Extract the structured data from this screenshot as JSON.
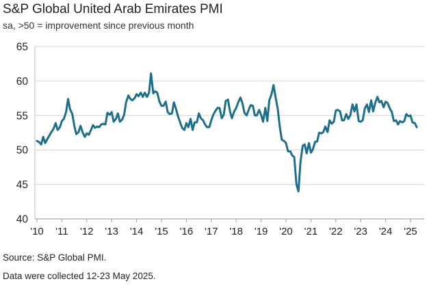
{
  "chart_data": {
    "type": "line",
    "title": "S&P Global United Arab Emirates PMI",
    "subtitle": "sa, >50 = improvement since previous month",
    "source": "Source: S&P Global PMI.",
    "note": "Data were collected 12-23 May 2025.",
    "ylim": [
      40,
      65
    ],
    "yticks": [
      "40",
      "45",
      "50",
      "55",
      "60",
      "65"
    ],
    "xlim": [
      2010,
      2025.42
    ],
    "xticks": [
      {
        "x": 2010,
        "label": "'10"
      },
      {
        "x": 2011,
        "label": "'11"
      },
      {
        "x": 2012,
        "label": "'12"
      },
      {
        "x": 2013,
        "label": "'13"
      },
      {
        "x": 2014,
        "label": "'14"
      },
      {
        "x": 2015,
        "label": "'15"
      },
      {
        "x": 2016,
        "label": "'16"
      },
      {
        "x": 2017,
        "label": "'17"
      },
      {
        "x": 2018,
        "label": "'18"
      },
      {
        "x": 2019,
        "label": "'19"
      },
      {
        "x": 2020,
        "label": "'20"
      },
      {
        "x": 2021,
        "label": "'21"
      },
      {
        "x": 2022,
        "label": "'22"
      },
      {
        "x": 2023,
        "label": "'23"
      },
      {
        "x": 2024,
        "label": "'24"
      },
      {
        "x": 2025,
        "label": "'25"
      }
    ],
    "grid": true,
    "line_color": "#1b6f8c",
    "series": [
      {
        "points": [
          [
            2010.0,
            51.3
          ],
          [
            2010.1,
            51.1
          ],
          [
            2010.17,
            50.8
          ],
          [
            2010.25,
            51.9
          ],
          [
            2010.33,
            51.0
          ],
          [
            2010.42,
            51.6
          ],
          [
            2010.5,
            52.1
          ],
          [
            2010.58,
            52.6
          ],
          [
            2010.67,
            53.1
          ],
          [
            2010.75,
            53.9
          ],
          [
            2010.83,
            52.9
          ],
          [
            2010.92,
            53.3
          ],
          [
            2011.0,
            54.2
          ],
          [
            2011.08,
            54.5
          ],
          [
            2011.17,
            55.5
          ],
          [
            2011.25,
            57.4
          ],
          [
            2011.33,
            55.9
          ],
          [
            2011.42,
            55.2
          ],
          [
            2011.5,
            53.5
          ],
          [
            2011.58,
            52.3
          ],
          [
            2011.67,
            52.6
          ],
          [
            2011.75,
            53.5
          ],
          [
            2011.83,
            52.6
          ],
          [
            2011.92,
            51.9
          ],
          [
            2012.0,
            52.4
          ],
          [
            2012.08,
            52.2
          ],
          [
            2012.17,
            52.9
          ],
          [
            2012.25,
            53.6
          ],
          [
            2012.33,
            53.2
          ],
          [
            2012.42,
            53.4
          ],
          [
            2012.5,
            53.3
          ],
          [
            2012.58,
            53.7
          ],
          [
            2012.67,
            53.8
          ],
          [
            2012.75,
            53.7
          ],
          [
            2012.83,
            55.4
          ],
          [
            2012.92,
            55.1
          ],
          [
            2013.0,
            55.5
          ],
          [
            2013.08,
            54.1
          ],
          [
            2013.17,
            54.5
          ],
          [
            2013.25,
            55.3
          ],
          [
            2013.33,
            54.1
          ],
          [
            2013.42,
            54.4
          ],
          [
            2013.5,
            55.1
          ],
          [
            2013.58,
            56.9
          ],
          [
            2013.67,
            57.9
          ],
          [
            2013.75,
            57.4
          ],
          [
            2013.83,
            57.2
          ],
          [
            2013.92,
            57.5
          ],
          [
            2014.0,
            58.1
          ],
          [
            2014.08,
            57.8
          ],
          [
            2014.17,
            58.3
          ],
          [
            2014.25,
            57.7
          ],
          [
            2014.33,
            58.3
          ],
          [
            2014.42,
            57.7
          ],
          [
            2014.5,
            58.3
          ],
          [
            2014.58,
            61.1
          ],
          [
            2014.67,
            58.2
          ],
          [
            2014.75,
            58.5
          ],
          [
            2014.83,
            58.3
          ],
          [
            2014.92,
            57.0
          ],
          [
            2015.0,
            56.4
          ],
          [
            2015.08,
            56.4
          ],
          [
            2015.17,
            57.0
          ],
          [
            2015.25,
            55.5
          ],
          [
            2015.33,
            55.2
          ],
          [
            2015.42,
            55.3
          ],
          [
            2015.5,
            56.9
          ],
          [
            2015.58,
            56.0
          ],
          [
            2015.67,
            54.8
          ],
          [
            2015.75,
            54.0
          ],
          [
            2015.83,
            53.2
          ],
          [
            2015.92,
            52.9
          ],
          [
            2016.0,
            53.9
          ],
          [
            2016.08,
            53.3
          ],
          [
            2016.17,
            54.5
          ],
          [
            2016.25,
            52.9
          ],
          [
            2016.33,
            54.0
          ],
          [
            2016.42,
            54.0
          ],
          [
            2016.5,
            55.3
          ],
          [
            2016.58,
            54.6
          ],
          [
            2016.67,
            54.3
          ],
          [
            2016.75,
            53.7
          ],
          [
            2016.83,
            53.3
          ],
          [
            2016.92,
            53.3
          ],
          [
            2017.0,
            54.3
          ],
          [
            2017.08,
            55.1
          ],
          [
            2017.17,
            55.7
          ],
          [
            2017.25,
            56.1
          ],
          [
            2017.33,
            56.1
          ],
          [
            2017.42,
            54.6
          ],
          [
            2017.5,
            55.1
          ],
          [
            2017.58,
            57.1
          ],
          [
            2017.67,
            57.3
          ],
          [
            2017.75,
            55.6
          ],
          [
            2017.83,
            54.6
          ],
          [
            2017.92,
            55.6
          ],
          [
            2018.0,
            56.1
          ],
          [
            2018.08,
            56.9
          ],
          [
            2018.17,
            57.6
          ],
          [
            2018.25,
            56.8
          ],
          [
            2018.33,
            55.4
          ],
          [
            2018.42,
            55.0
          ],
          [
            2018.5,
            55.8
          ],
          [
            2018.58,
            56.5
          ],
          [
            2018.67,
            56.4
          ],
          [
            2018.75,
            55.0
          ],
          [
            2018.83,
            55.0
          ],
          [
            2018.92,
            55.8
          ],
          [
            2019.0,
            55.1
          ],
          [
            2019.08,
            54.1
          ],
          [
            2019.17,
            56.1
          ],
          [
            2019.25,
            54.2
          ],
          [
            2019.33,
            57.2
          ],
          [
            2019.42,
            58.1
          ],
          [
            2019.5,
            59.4
          ],
          [
            2019.58,
            57.7
          ],
          [
            2019.67,
            55.9
          ],
          [
            2019.75,
            53.4
          ],
          [
            2019.83,
            51.5
          ],
          [
            2019.92,
            51.3
          ],
          [
            2020.0,
            51.0
          ],
          [
            2020.08,
            49.8
          ],
          [
            2020.17,
            49.8
          ],
          [
            2020.25,
            49.2
          ],
          [
            2020.33,
            49.0
          ],
          [
            2020.42,
            45.0
          ],
          [
            2020.5,
            44.0
          ],
          [
            2020.58,
            48.2
          ],
          [
            2020.67,
            50.6
          ],
          [
            2020.75,
            50.8
          ],
          [
            2020.83,
            49.5
          ],
          [
            2020.92,
            51.0
          ],
          [
            2021.0,
            49.6
          ],
          [
            2021.08,
            50.1
          ],
          [
            2021.17,
            51.2
          ],
          [
            2021.25,
            51.2
          ],
          [
            2021.33,
            52.5
          ],
          [
            2021.42,
            52.4
          ],
          [
            2021.5,
            52.6
          ],
          [
            2021.58,
            53.4
          ],
          [
            2021.67,
            52.6
          ],
          [
            2021.75,
            54.3
          ],
          [
            2021.83,
            53.8
          ],
          [
            2021.92,
            54.1
          ],
          [
            2022.0,
            55.7
          ],
          [
            2022.08,
            55.8
          ],
          [
            2022.17,
            55.6
          ],
          [
            2022.25,
            54.3
          ],
          [
            2022.33,
            54.3
          ],
          [
            2022.42,
            55.2
          ],
          [
            2022.5,
            54.5
          ],
          [
            2022.58,
            55.0
          ],
          [
            2022.67,
            56.6
          ],
          [
            2022.75,
            55.6
          ],
          [
            2022.83,
            56.6
          ],
          [
            2022.92,
            54.2
          ],
          [
            2023.0,
            54.1
          ],
          [
            2023.08,
            54.3
          ],
          [
            2023.17,
            56.1
          ],
          [
            2023.25,
            56.6
          ],
          [
            2023.33,
            55.5
          ],
          [
            2023.42,
            57.2
          ],
          [
            2023.5,
            55.6
          ],
          [
            2023.58,
            56.8
          ],
          [
            2023.67,
            57.7
          ],
          [
            2023.75,
            56.9
          ],
          [
            2023.83,
            57.1
          ],
          [
            2023.92,
            56.2
          ],
          [
            2024.0,
            57.0
          ],
          [
            2024.08,
            56.8
          ],
          [
            2024.17,
            56.0
          ],
          [
            2024.25,
            55.5
          ],
          [
            2024.33,
            54.2
          ],
          [
            2024.42,
            54.3
          ],
          [
            2024.5,
            53.7
          ],
          [
            2024.58,
            54.2
          ],
          [
            2024.67,
            54.0
          ],
          [
            2024.75,
            54.2
          ],
          [
            2024.83,
            55.2
          ],
          [
            2024.92,
            54.9
          ],
          [
            2025.0,
            55.0
          ],
          [
            2025.08,
            54.0
          ],
          [
            2025.17,
            53.9
          ],
          [
            2025.25,
            53.3
          ]
        ]
      }
    ]
  }
}
